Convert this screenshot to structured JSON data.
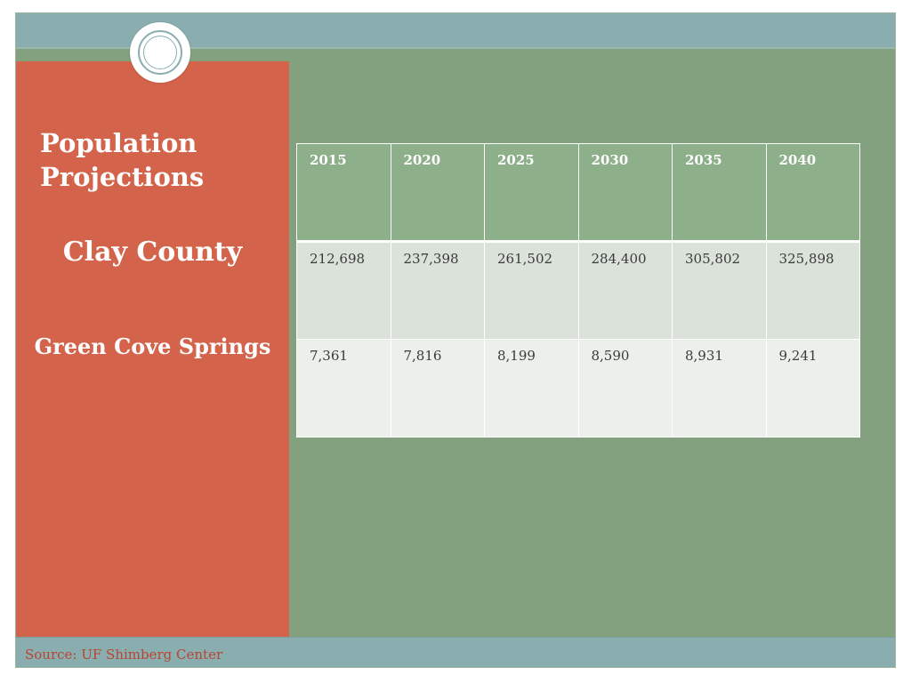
{
  "slide": {
    "title": "Population Projections",
    "county": "Clay County",
    "city": "Green Cove Springs",
    "source": "Source: UF Shimberg Center"
  },
  "table": {
    "headers": [
      "2015",
      "2020",
      "2025",
      "2030",
      "2035",
      "2040"
    ],
    "rows": [
      [
        "212,698",
        "237,398",
        "261,502",
        "284,400",
        "305,802",
        "325,898"
      ],
      [
        "7,361",
        "7,816",
        "8,199",
        "8,590",
        "8,931",
        "9,241"
      ]
    ]
  },
  "colors": {
    "background": "#83a07f",
    "left_panel": "#d3634a",
    "band": "#8aaeb0",
    "header_row": "#8daf89",
    "row_1": "#dae2d9",
    "row_2": "#ecf0eb",
    "source_text": "#b8452f"
  },
  "icons": {
    "decoration": "concentric-circle-icon"
  }
}
